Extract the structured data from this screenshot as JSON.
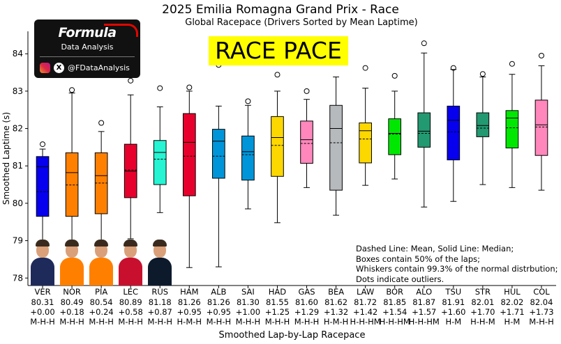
{
  "chart_data": {
    "type": "box",
    "title": "2025 Emilia Romagna Grand Prix - Race",
    "subtitle": "Global Racepace (Drivers Sorted by Mean Laptime)",
    "xlabel": "Smoothed Lap-by-Lap Racepace",
    "ylabel": "Smoothed Laptime (s)",
    "ylim": [
      77.8,
      84.6
    ],
    "yticks": [
      78,
      79,
      80,
      81,
      82,
      83,
      84
    ],
    "grid": false,
    "legend_lines": [
      "Dashed Line: Mean, Solid Line: Median;",
      "Boxes contain 50% of the laps;",
      "Whiskers contain 99.3% of the normal distrbution;",
      "Dots indicate outliers."
    ],
    "drivers": [
      {
        "code": "VER",
        "mean_label": "80.31",
        "gap": "+0.00",
        "tyres": "M-H-H",
        "color": "#0600ef",
        "whisker_low": 78.95,
        "q1": 79.65,
        "median": 80.98,
        "mean": 80.31,
        "q3": 81.25,
        "whisker_high": 81.45,
        "outliers": [
          81.58
        ]
      },
      {
        "code": "NOR",
        "mean_label": "80.49",
        "gap": "+0.18",
        "tyres": "M-H-H",
        "color": "#ff8000",
        "whisker_low": 78.95,
        "q1": 79.65,
        "median": 80.82,
        "mean": 80.49,
        "q3": 81.35,
        "whisker_high": 82.95,
        "outliers": [
          83.03
        ]
      },
      {
        "code": "PIA",
        "mean_label": "80.54",
        "gap": "+0.24",
        "tyres": "M-H-H",
        "color": "#ff8000",
        "whisker_low": 78.95,
        "q1": 79.72,
        "median": 80.74,
        "mean": 80.54,
        "q3": 81.35,
        "whisker_high": 81.92,
        "outliers": [
          82.15
        ]
      },
      {
        "code": "LEC",
        "mean_label": "80.89",
        "gap": "+0.58",
        "tyres": "M-H-H",
        "color": "#e8002d",
        "whisker_low": 79.05,
        "q1": 80.15,
        "median": 80.86,
        "mean": 80.89,
        "q3": 81.58,
        "whisker_high": 82.9,
        "outliers": [
          83.28
        ]
      },
      {
        "code": "RUS",
        "mean_label": "81.18",
        "gap": "+0.87",
        "tyres": "M-H-H",
        "color": "#27f4d2",
        "whisker_low": 79.75,
        "q1": 80.5,
        "median": 81.36,
        "mean": 81.18,
        "q3": 81.68,
        "whisker_high": 82.58,
        "outliers": [
          83.08
        ]
      },
      {
        "code": "HAM",
        "mean_label": "81.26",
        "gap": "+0.95",
        "tyres": "H-M-H",
        "color": "#e8002d",
        "whisker_low": 78.28,
        "q1": 80.2,
        "median": 81.63,
        "mean": 81.26,
        "q3": 82.4,
        "whisker_high": 83.0,
        "outliers": [
          83.1
        ]
      },
      {
        "code": "ALB",
        "mean_label": "81.26",
        "gap": "+0.95",
        "tyres": "M-H-H",
        "color": "#0095d9",
        "whisker_low": 78.3,
        "q1": 80.67,
        "median": 81.66,
        "mean": 81.26,
        "q3": 81.98,
        "whisker_high": 82.6,
        "outliers": [
          83.7
        ]
      },
      {
        "code": "SAI",
        "mean_label": "81.30",
        "gap": "+1.00",
        "tyres": "M-H-H",
        "color": "#0095d9",
        "whisker_low": 79.85,
        "q1": 80.62,
        "median": 81.38,
        "mean": 81.3,
        "q3": 81.8,
        "whisker_high": 82.62,
        "outliers": [
          82.73
        ]
      },
      {
        "code": "HAD",
        "mean_label": "81.55",
        "gap": "+1.25",
        "tyres": "M-H-H",
        "color": "#fcd700",
        "whisker_low": 79.48,
        "q1": 80.72,
        "median": 81.76,
        "mean": 81.55,
        "q3": 82.32,
        "whisker_high": 83.0,
        "outliers": [
          83.44
        ]
      },
      {
        "code": "GAS",
        "mean_label": "81.60",
        "gap": "+1.29",
        "tyres": "M-H-H",
        "color": "#ff87bc",
        "whisker_low": 80.42,
        "q1": 81.07,
        "median": 81.7,
        "mean": 81.6,
        "q3": 82.2,
        "whisker_high": 82.78,
        "outliers": [
          83.0
        ]
      },
      {
        "code": "BEA",
        "mean_label": "81.62",
        "gap": "+1.32",
        "tyres": "H-M-H",
        "color": "#b6babd",
        "whisker_low": 79.68,
        "q1": 80.35,
        "median": 82.0,
        "mean": 81.62,
        "q3": 82.62,
        "whisker_high": 83.38,
        "outliers": []
      },
      {
        "code": "LAW",
        "mean_label": "81.72",
        "gap": "+1.42",
        "tyres": "H-H-HM",
        "color": "#fcd700",
        "whisker_low": 80.48,
        "q1": 81.08,
        "median": 81.94,
        "mean": 81.72,
        "q3": 82.15,
        "whisker_high": 83.08,
        "outliers": [
          83.62
        ]
      },
      {
        "code": "BOR",
        "mean_label": "81.85",
        "gap": "+1.54",
        "tyres": "H-H-HM",
        "color": "#00e701",
        "whisker_low": 80.65,
        "q1": 81.3,
        "median": 81.87,
        "mean": 81.85,
        "q3": 82.26,
        "whisker_high": 83.0,
        "outliers": [
          83.41
        ]
      },
      {
        "code": "ALO",
        "mean_label": "81.87",
        "gap": "+1.57",
        "tyres": "H-H-HM",
        "color": "#229971",
        "whisker_low": 79.9,
        "q1": 81.5,
        "median": 81.93,
        "mean": 81.87,
        "q3": 82.42,
        "whisker_high": 84.02,
        "outliers": [
          84.28
        ]
      },
      {
        "code": "TSU",
        "mean_label": "81.91",
        "gap": "+1.60",
        "tyres": "H-M",
        "color": "#0600ef",
        "whisker_low": 80.05,
        "q1": 81.16,
        "median": 82.22,
        "mean": 81.91,
        "q3": 82.6,
        "whisker_high": 83.58,
        "outliers": [
          83.62
        ]
      },
      {
        "code": "STR",
        "mean_label": "82.01",
        "gap": "+1.70",
        "tyres": "H-H-M",
        "color": "#229971",
        "whisker_low": 80.5,
        "q1": 81.78,
        "median": 82.08,
        "mean": 82.01,
        "q3": 82.42,
        "whisker_high": 83.38,
        "outliers": [
          83.46
        ]
      },
      {
        "code": "HUL",
        "mean_label": "82.02",
        "gap": "+1.71",
        "tyres": "H-M",
        "color": "#00e701",
        "whisker_low": 80.42,
        "q1": 81.48,
        "median": 82.28,
        "mean": 82.02,
        "q3": 82.48,
        "whisker_high": 83.45,
        "outliers": [
          83.73
        ]
      },
      {
        "code": "COL",
        "mean_label": "82.04",
        "gap": "+1.73",
        "tyres": "M-H-H",
        "color": "#ff87bc",
        "whisker_low": 80.35,
        "q1": 81.28,
        "median": 82.1,
        "mean": 82.04,
        "q3": 82.76,
        "whisker_high": 83.68,
        "outliers": [
          83.95
        ]
      }
    ]
  },
  "logo": {
    "wordmark": "Formula",
    "subtitle": "Data Analysis",
    "handle": "@FDataAnalysis",
    "x_glyph": "X",
    "instagram_icon": "instagram-icon",
    "x_icon": "x-icon"
  },
  "banner": "RACE PACE"
}
